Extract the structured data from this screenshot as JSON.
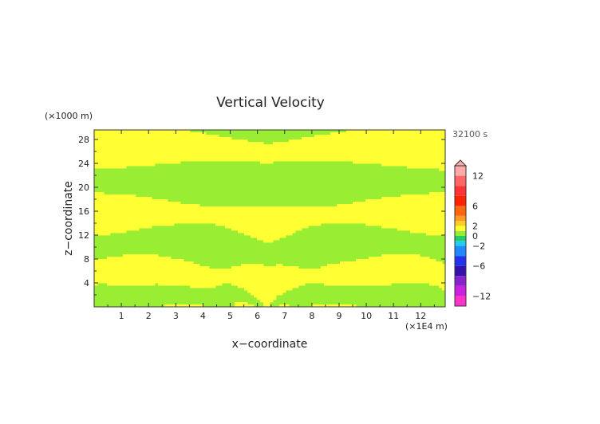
{
  "chart_data": {
    "type": "heatmap",
    "title": "Vertical Velocity",
    "xlabel": "x−coordinate",
    "ylabel": "z−coordinate",
    "x_units": "(×1E4 m)",
    "y_units": "(×1000 m)",
    "time_label": "32100 s",
    "xlim": [
      0,
      12.9
    ],
    "ylim": [
      0,
      29.6
    ],
    "x_ticks": [
      "1",
      "2",
      "3",
      "4",
      "5",
      "6",
      "7",
      "8",
      "9",
      "10",
      "11",
      "12"
    ],
    "y_ticks": [
      "4",
      "8",
      "12",
      "16",
      "20",
      "24",
      "28"
    ],
    "colorbar": {
      "range": [
        -14,
        14
      ],
      "tick_labels": [
        "12",
        "6",
        "2",
        "0",
        "−2",
        "−6",
        "−12"
      ],
      "tick_values": [
        12,
        6,
        2,
        0,
        -2,
        -6,
        -12
      ],
      "levels": [
        {
          "from": -14,
          "to": -12,
          "color": "#ff33cc"
        },
        {
          "from": -12,
          "to": -10,
          "color": "#cc22dd"
        },
        {
          "from": -10,
          "to": -8,
          "color": "#8822cc"
        },
        {
          "from": -8,
          "to": -6,
          "color": "#3311aa"
        },
        {
          "from": -6,
          "to": -4,
          "color": "#2233ee"
        },
        {
          "from": -4,
          "to": -2,
          "color": "#2288ff"
        },
        {
          "from": -2,
          "to": -1,
          "color": "#22ccee"
        },
        {
          "from": -1,
          "to": 0,
          "color": "#22cc66"
        },
        {
          "from": 0,
          "to": 1,
          "color": "#99ee33"
        },
        {
          "from": 1,
          "to": 2,
          "color": "#ffff33"
        },
        {
          "from": 2,
          "to": 3,
          "color": "#ffcc22"
        },
        {
          "from": 3,
          "to": 4,
          "color": "#ff9922"
        },
        {
          "from": 4,
          "to": 6,
          "color": "#ff6611"
        },
        {
          "from": 6,
          "to": 8,
          "color": "#ff2200"
        },
        {
          "from": 8,
          "to": 10,
          "color": "#ff3333"
        },
        {
          "from": 10,
          "to": 12,
          "color": "#ff6666"
        },
        {
          "from": 12,
          "to": 14,
          "color": "#ffaaaa"
        }
      ]
    },
    "field_colors": {
      "background": "#99ee33",
      "positive": "#ffff33"
    },
    "field_level_values": [
      0.5,
      1.5
    ]
  }
}
